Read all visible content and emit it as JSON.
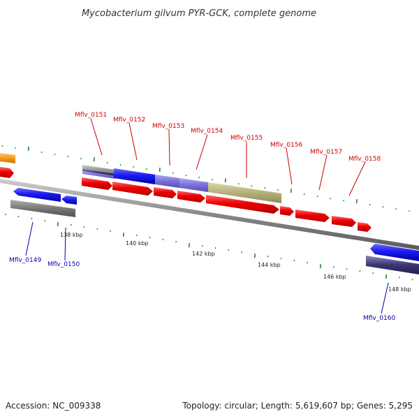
{
  "title": "Mycobacterium gilvum PYR-GCK, complete genome",
  "footer": {
    "accession": "Accession: NC_009338",
    "summary": "Topology: circular; Length: 5,619,607 bp; Genes: 5,295"
  },
  "colors": {
    "forward_gene_label": "#cc0000",
    "reverse_gene_label": "#0000aa",
    "cds": "#ee0000",
    "blue_feature": "#1a1aee",
    "lavender_feature": "#7a6fd8",
    "khaki_feature": "#b5b07a",
    "grey_feature": "#999999",
    "dark_navy_feature": "#3a3570",
    "orange_feature": "#f59a18",
    "backbone": "#888888",
    "tick": "#228b22"
  },
  "ruler": {
    "labels": [
      "138 kbp",
      "140 kbp",
      "142 kbp",
      "144 kbp",
      "146 kbp",
      "148 kbp"
    ]
  },
  "genes": {
    "forward": [
      "Mflv_0151",
      "Mflv_0152",
      "Mflv_0153",
      "Mflv_0154",
      "Mflv_0155",
      "Mflv_0156",
      "Mflv_0157",
      "Mflv_0158"
    ],
    "reverse": [
      "Mflv_0149",
      "Mflv_0150",
      "Mflv_0160"
    ]
  }
}
